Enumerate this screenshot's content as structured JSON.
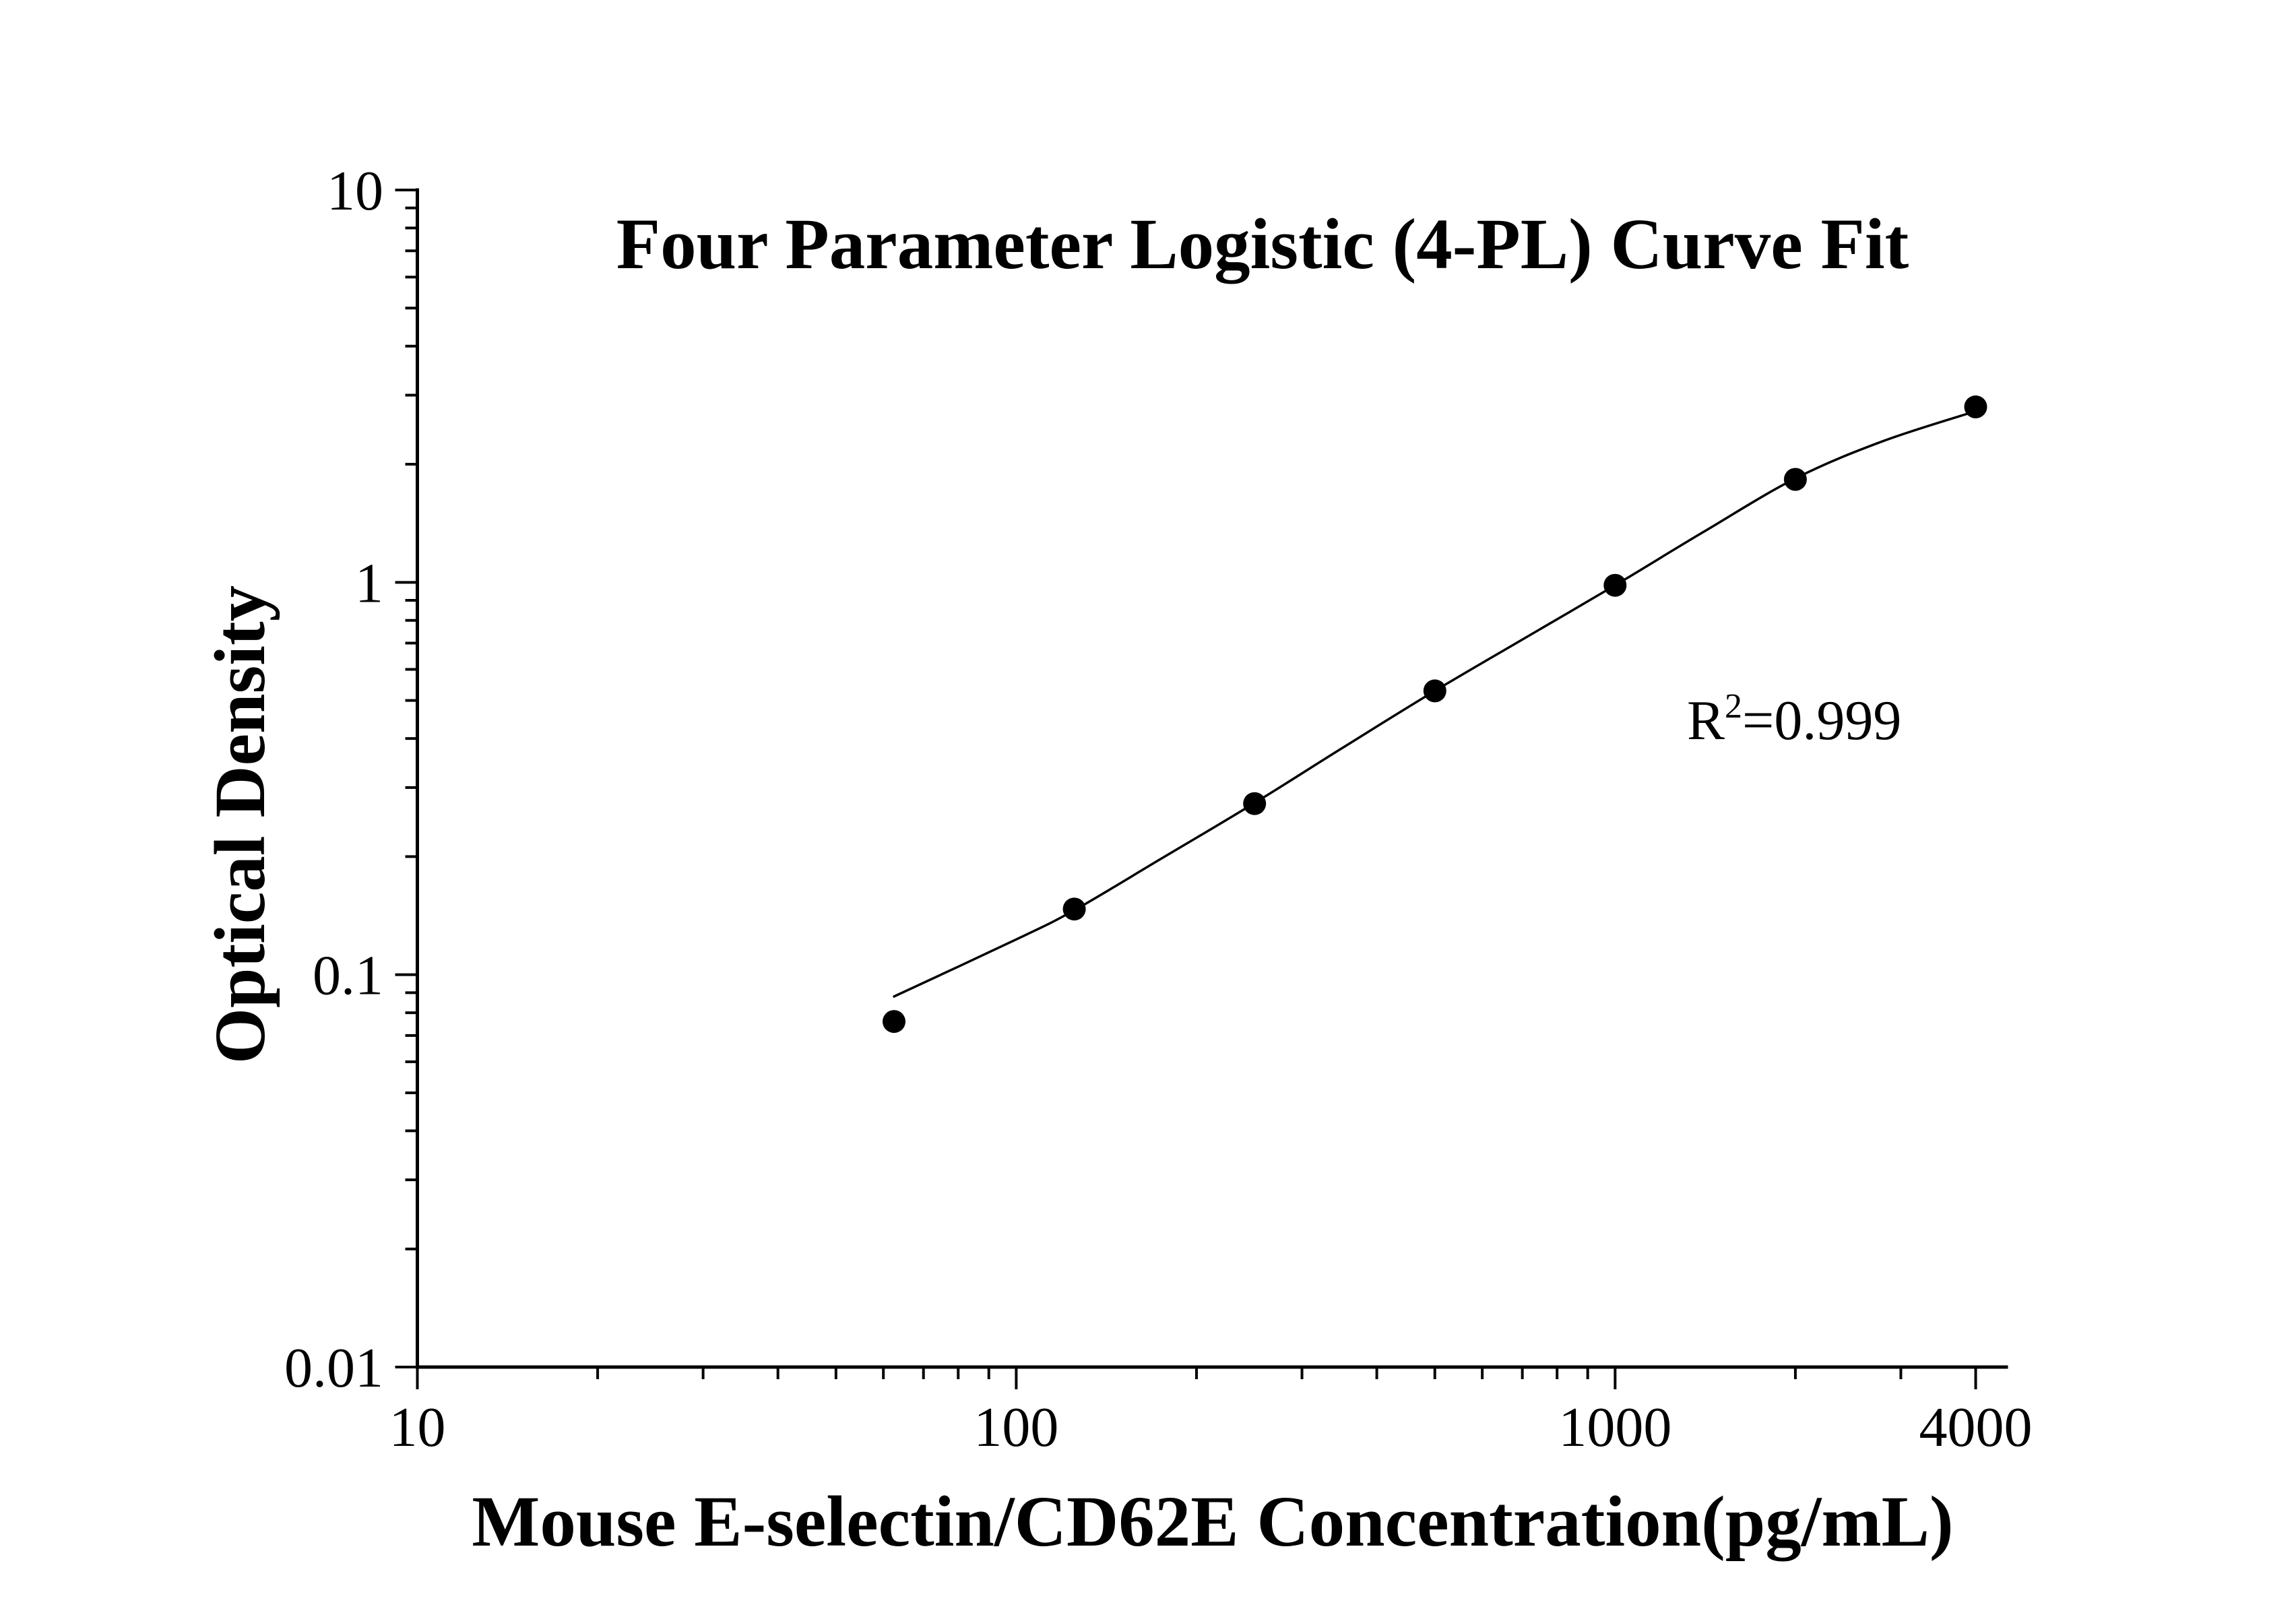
{
  "chart_data": {
    "type": "scatter",
    "title": "Four Parameter Logistic (4-PL) Curve Fit",
    "xlabel": "Mouse E-selectin/CD62E Concentration(pg/mL)",
    "ylabel": "Optical Density",
    "xscale": "log",
    "yscale": "log",
    "xlim": [
      10,
      4500
    ],
    "ylim": [
      0.01,
      10
    ],
    "xticks": [
      10,
      100,
      1000,
      4000
    ],
    "xtick_labels": [
      "10",
      "100",
      "1000",
      "4000"
    ],
    "yticks": [
      10,
      1,
      0.1,
      0.01
    ],
    "ytick_labels": [
      "10",
      "1",
      "0.1",
      "0.01"
    ],
    "minor_ticks": true,
    "grid": false,
    "series": [
      {
        "type": "line",
        "color": "#000000",
        "x": [
          62.5,
          100,
          125,
          175,
          250,
          350,
          500,
          700,
          1000,
          1400,
          2000,
          2800,
          4000
        ],
        "y": [
          0.088,
          0.123,
          0.146,
          0.198,
          0.274,
          0.378,
          0.529,
          0.715,
          0.983,
          1.34,
          1.84,
          2.29,
          2.73
        ]
      },
      {
        "type": "scatter",
        "color": "#000000",
        "x": [
          62.5,
          125,
          250,
          500,
          1000,
          2000,
          4000
        ],
        "y": [
          0.076,
          0.147,
          0.273,
          0.529,
          0.983,
          1.83,
          2.8
        ]
      }
    ],
    "annotation": {
      "base": "R",
      "superscript": "2",
      "text": "=0.999"
    }
  }
}
